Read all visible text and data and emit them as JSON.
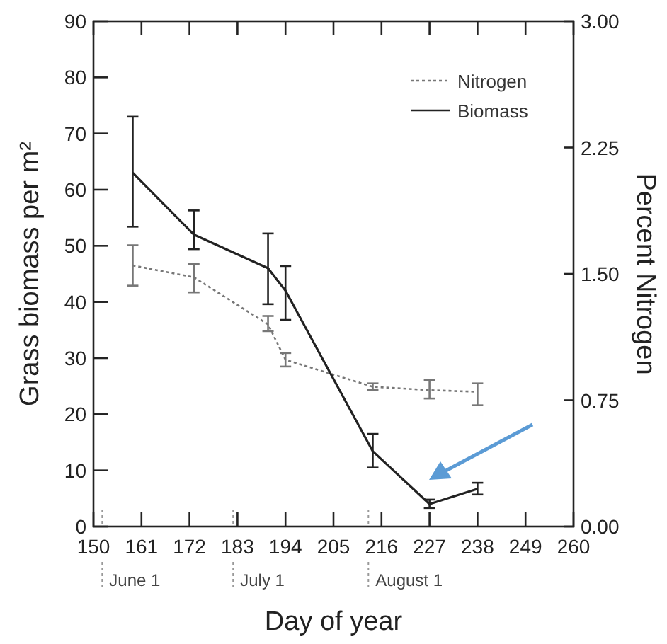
{
  "chart_data": {
    "type": "line",
    "xlabel": "Day of year",
    "ylabel": "Grass biomass per m²",
    "y2label": "Percent Nitrogen",
    "xlim": [
      150,
      260
    ],
    "xticks": [
      150,
      161,
      172,
      183,
      194,
      205,
      216,
      227,
      238,
      249,
      260
    ],
    "ylim": [
      0,
      90
    ],
    "yticks": [
      0,
      10,
      20,
      30,
      40,
      50,
      60,
      70,
      80,
      90
    ],
    "y2lim": [
      0,
      3
    ],
    "y2ticks": [
      {
        "value": 0,
        "label": "0.00"
      },
      {
        "value": 0.75,
        "label": "0.75"
      },
      {
        "value": 1.5,
        "label": "1.50"
      },
      {
        "value": 2.25,
        "label": "2.25"
      },
      {
        "value": 3,
        "label": "3.00"
      }
    ],
    "legend": "top right",
    "grid": false,
    "marker": "none",
    "ref_lines": [
      {
        "axis": "x",
        "value": 152,
        "label": "June 1",
        "color": "#999999",
        "line_style": "dotted"
      },
      {
        "axis": "x",
        "value": 182,
        "label": "July 1",
        "color": "#999999",
        "line_style": "dotted"
      },
      {
        "axis": "x",
        "value": 213,
        "label": "August 1",
        "color": "#999999",
        "line_style": "dotted"
      }
    ],
    "series": [
      {
        "name": "Nitrogen",
        "color": "#777777",
        "line_style": "dotted",
        "axis": "y2",
        "x": [
          159,
          173,
          190,
          194,
          214,
          227,
          238
        ],
        "values": [
          1.55,
          1.48,
          1.2,
          0.99,
          0.83,
          0.81,
          0.8
        ],
        "errors": [
          [
            1.43,
            1.67
          ],
          [
            1.39,
            1.56
          ],
          [
            1.16,
            1.25
          ],
          [
            0.95,
            1.03
          ],
          [
            0.81,
            0.85
          ],
          [
            0.76,
            0.87
          ],
          [
            0.72,
            0.85
          ]
        ]
      },
      {
        "name": "Biomass",
        "color": "#222222",
        "line_style": "solid",
        "x": [
          159,
          173,
          190,
          194,
          214,
          227,
          238
        ],
        "values": [
          63,
          52,
          46,
          42,
          13.4,
          4,
          6.7
        ],
        "errors": [
          [
            53.4,
            73
          ],
          [
            49.4,
            56.3
          ],
          [
            39.6,
            52.2
          ],
          [
            36.8,
            46.4
          ],
          [
            10.5,
            16.5
          ],
          [
            3.3,
            4.8
          ],
          [
            5.7,
            7.8
          ]
        ]
      }
    ]
  }
}
